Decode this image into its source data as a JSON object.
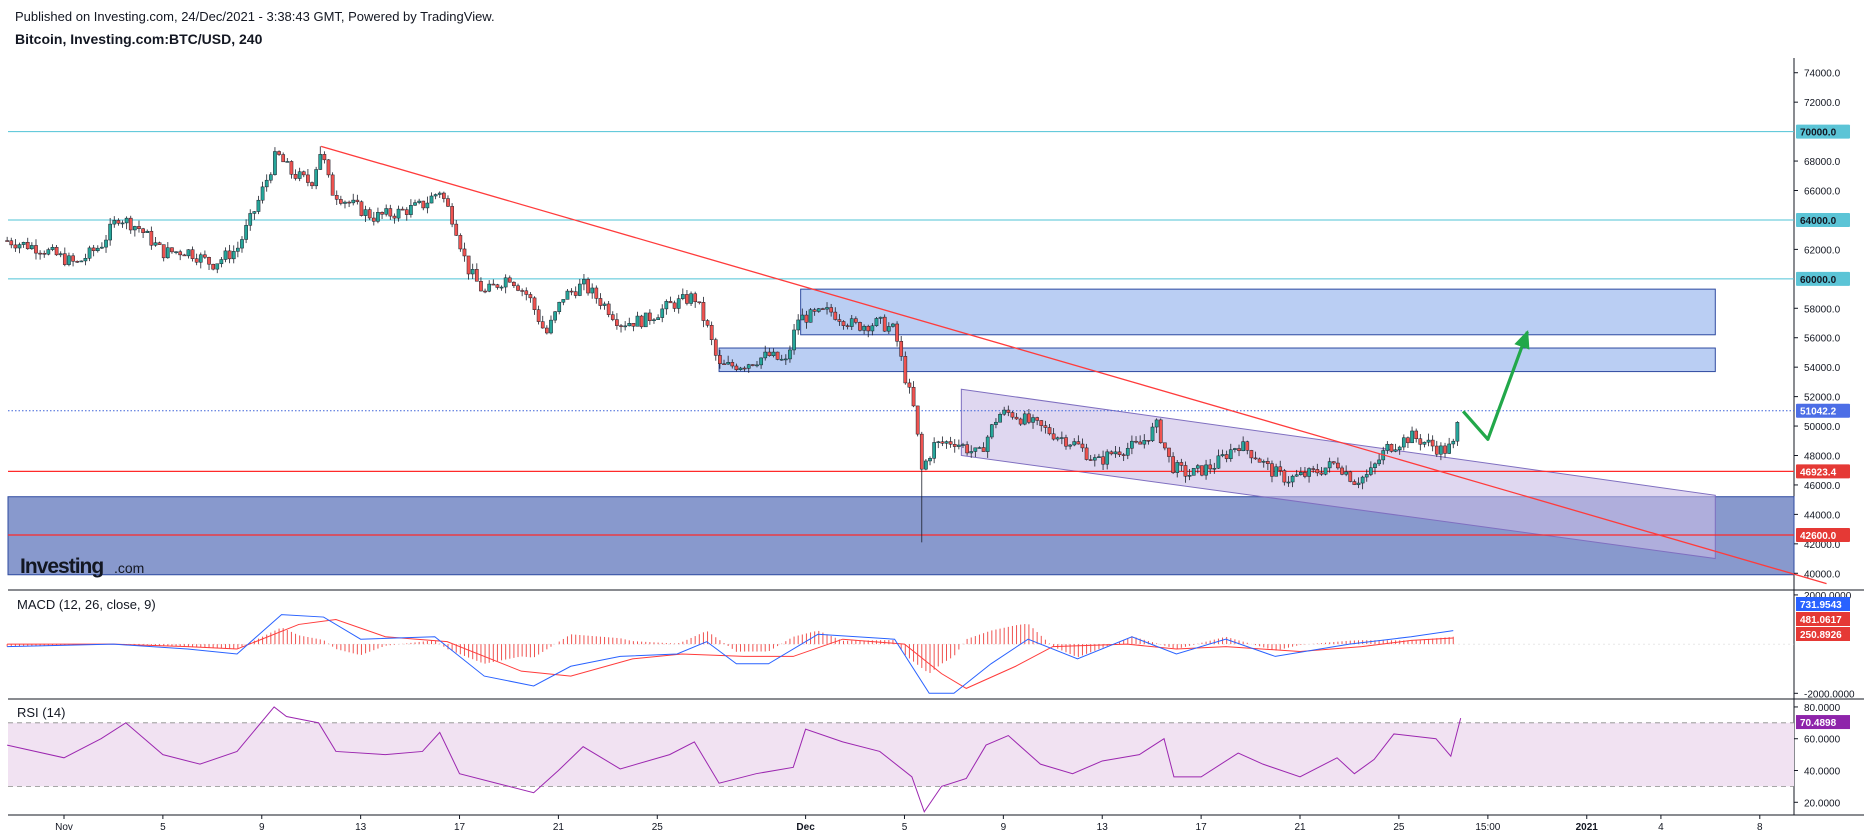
{
  "header": {
    "published": "Published on Investing.com, 24/Dec/2021 - 3:38:43 GMT, Powered by TradingView.",
    "title": "Bitcoin, Investing.com:BTC/USD, 240"
  },
  "logo": {
    "text": "Investing",
    "suffix": ".com"
  },
  "colors": {
    "up_candle": "#26a69a",
    "down_candle": "#ef5350",
    "resistance_line": "#4fc3d6",
    "support_line": "#ff2a2a",
    "trendline": "#ff3b3b",
    "zone_fill": "#aec6f1",
    "zone_stroke": "#2e4aa0",
    "support_zone_fill": "#7b8ec8",
    "channel_fill": "#c9bde6",
    "channel_stroke": "#7f6fc0",
    "forecast_arrow": "#22a84a",
    "current_price_line": "#3f63d8",
    "macd_line": "#2962ff",
    "signal_line": "#ff3b3b",
    "hist_color": "#ef5350",
    "rsi_line": "#9c27b0",
    "rsi_band": "#f1e2f2"
  },
  "chart_data": [
    {
      "type": "candlestick",
      "title": "Bitcoin, Investing.com:BTC/USD, 240",
      "y_ticks": [
        "74000.0",
        "72000.0",
        "68000.0",
        "66000.0",
        "62000.0",
        "58000.0",
        "56000.0",
        "54000.0",
        "52000.0",
        "50000.0",
        "48000.0",
        "46000.0",
        "44000.0",
        "42000.0",
        "40000.0"
      ],
      "ylim": [
        39000,
        75000
      ],
      "x_ticks": [
        {
          "label": "Nov",
          "day": 0
        },
        {
          "label": "5",
          "day": 4
        },
        {
          "label": "9",
          "day": 8
        },
        {
          "label": "13",
          "day": 12
        },
        {
          "label": "17",
          "day": 16
        },
        {
          "label": "21",
          "day": 20
        },
        {
          "label": "25",
          "day": 24
        },
        {
          "label": "Dec",
          "day": 30
        },
        {
          "label": "5",
          "day": 34
        },
        {
          "label": "9",
          "day": 38
        },
        {
          "label": "13",
          "day": 42
        },
        {
          "label": "17",
          "day": 46
        },
        {
          "label": "21",
          "day": 50
        },
        {
          "label": "25",
          "day": 54
        },
        {
          "label": "15:00",
          "day": 57.6
        },
        {
          "label": "2021",
          "day": 61.6
        },
        {
          "label": "4",
          "day": 64.6
        },
        {
          "label": "8",
          "day": 68.6
        }
      ],
      "price_path": [
        [
          -2.3,
          62600
        ],
        [
          -1,
          62100
        ],
        [
          0.5,
          61000
        ],
        [
          1.5,
          62300
        ],
        [
          2.2,
          64200
        ],
        [
          3,
          63500
        ],
        [
          4,
          61800
        ],
        [
          5,
          61900
        ],
        [
          6,
          61000
        ],
        [
          7,
          62000
        ],
        [
          7.8,
          65000
        ],
        [
          8.6,
          68500
        ],
        [
          9.2,
          67200
        ],
        [
          10,
          66500
        ],
        [
          10.4,
          68800
        ],
        [
          10.8,
          66000
        ],
        [
          11.5,
          65200
        ],
        [
          12.5,
          64200
        ],
        [
          13.5,
          64500
        ],
        [
          14.5,
          65000
        ],
        [
          15.2,
          66000
        ],
        [
          15.8,
          63800
        ],
        [
          16.3,
          60800
        ],
        [
          17,
          59000
        ],
        [
          18,
          60200
        ],
        [
          18.8,
          58800
        ],
        [
          19.5,
          56200
        ],
        [
          20.2,
          58800
        ],
        [
          21,
          59600
        ],
        [
          22,
          58000
        ],
        [
          22.5,
          57000
        ],
        [
          23.5,
          57200
        ],
        [
          24.5,
          58200
        ],
        [
          25.5,
          58800
        ],
        [
          26,
          56800
        ],
        [
          26.5,
          54000
        ],
        [
          27.5,
          54200
        ],
        [
          28.5,
          54800
        ],
        [
          29.2,
          54300
        ],
        [
          29.7,
          57300
        ],
        [
          30.3,
          57500
        ],
        [
          31,
          57800
        ],
        [
          32,
          56800
        ],
        [
          33,
          57000
        ],
        [
          33.6,
          56500
        ],
        [
          34,
          53500
        ],
        [
          34.4,
          51000
        ],
        [
          34.7,
          47000
        ],
        [
          35.2,
          48700
        ],
        [
          36,
          49000
        ],
        [
          37,
          48000
        ],
        [
          37.8,
          50800
        ],
        [
          38.3,
          50900
        ],
        [
          39,
          50300
        ],
        [
          40,
          49500
        ],
        [
          41,
          48700
        ],
        [
          41.8,
          47500
        ],
        [
          42.5,
          48300
        ],
        [
          43.5,
          48700
        ],
        [
          44.2,
          50000
        ],
        [
          44.8,
          47300
        ],
        [
          45.5,
          46700
        ],
        [
          46.5,
          47300
        ],
        [
          47.5,
          48800
        ],
        [
          48.2,
          48000
        ],
        [
          48.8,
          47000
        ],
        [
          49.5,
          46400
        ],
        [
          50.5,
          46800
        ],
        [
          51.5,
          47500
        ],
        [
          52.2,
          46300
        ],
        [
          52.8,
          46700
        ],
        [
          53.5,
          48500
        ],
        [
          54.5,
          49300
        ],
        [
          55.2,
          48800
        ],
        [
          55.8,
          48300
        ],
        [
          56.2,
          48700
        ],
        [
          56.5,
          51100
        ]
      ],
      "current_price": 51042.2,
      "current_price_label": "51042.2",
      "price_tags": [
        {
          "label": "70000.0",
          "value": 70000,
          "color": "#5bc4d6",
          "text_color": "#131722"
        },
        {
          "label": "64000.0",
          "value": 64000,
          "color": "#5bc4d6",
          "text_color": "#131722"
        },
        {
          "label": "60000.0",
          "value": 60000,
          "color": "#5bc4d6",
          "text_color": "#131722"
        },
        {
          "label": "51042.2",
          "value": 51042.2,
          "color": "#4c6ee6",
          "text_color": "#ffffff"
        },
        {
          "label": "46923.4",
          "value": 46923.4,
          "color": "#e53935",
          "text_color": "#ffffff"
        },
        {
          "label": "42600.0",
          "value": 42600,
          "color": "#e53935",
          "text_color": "#ffffff"
        }
      ],
      "horizontal_lines": [
        {
          "value": 70000,
          "style": "resistance"
        },
        {
          "value": 64000,
          "style": "resistance"
        },
        {
          "value": 60000,
          "style": "resistance"
        },
        {
          "value": 46923.4,
          "style": "support"
        },
        {
          "value": 42600,
          "style": "support"
        }
      ],
      "zones": [
        {
          "from_day": 29.8,
          "to_day": 66.8,
          "low": 56200,
          "high": 59300,
          "style": "resistance_zone"
        },
        {
          "from_day": 26.5,
          "to_day": 66.8,
          "low": 53700,
          "high": 55300,
          "style": "resistance_zone"
        },
        {
          "from_day": -2.3,
          "to_day": 71.3,
          "low": 39900,
          "high": 45200,
          "style": "support_zone"
        }
      ],
      "trendline": {
        "from": [
          10.4,
          69000
        ],
        "to": [
          71.3,
          39300
        ]
      },
      "channel": {
        "upper": [
          [
            36.3,
            52500
          ],
          [
            66.8,
            45300
          ]
        ],
        "lower": [
          [
            36.3,
            48000
          ],
          [
            66.8,
            41000
          ]
        ]
      },
      "forecast_arrow": [
        [
          56.6,
          51000
        ],
        [
          57.6,
          49100
        ],
        [
          59.2,
          56400
        ]
      ]
    },
    {
      "type": "line",
      "title": "MACD (12, 26, close, 9)",
      "y_ticks": [
        "2000.0000",
        "-2000.0000"
      ],
      "ylim": [
        -2150,
        2200
      ],
      "series": [
        {
          "name": "MACD",
          "values": [
            [
              -2.3,
              -100
            ],
            [
              2,
              0
            ],
            [
              5,
              -200
            ],
            [
              7,
              -400
            ],
            [
              8.8,
              1200
            ],
            [
              10.5,
              1100
            ],
            [
              12,
              200
            ],
            [
              15,
              300
            ],
            [
              17,
              -1300
            ],
            [
              19,
              -1700
            ],
            [
              20.5,
              -900
            ],
            [
              22.5,
              -500
            ],
            [
              24.8,
              -400
            ],
            [
              26,
              100
            ],
            [
              27.2,
              -800
            ],
            [
              28.5,
              -800
            ],
            [
              30.5,
              400
            ],
            [
              33.6,
              200
            ],
            [
              35,
              -2000
            ],
            [
              36,
              -2000
            ],
            [
              37.5,
              -800
            ],
            [
              39,
              200
            ],
            [
              41,
              -600
            ],
            [
              43.2,
              300
            ],
            [
              45,
              -400
            ],
            [
              47,
              200
            ],
            [
              49,
              -500
            ],
            [
              52,
              0
            ],
            [
              54.5,
              300
            ],
            [
              56.2,
              550
            ]
          ]
        },
        {
          "name": "Signal",
          "values": [
            [
              -2.3,
              0
            ],
            [
              2,
              0
            ],
            [
              5,
              -100
            ],
            [
              7,
              -200
            ],
            [
              9.5,
              800
            ],
            [
              11,
              1000
            ],
            [
              13,
              300
            ],
            [
              15.5,
              100
            ],
            [
              18.5,
              -1100
            ],
            [
              20.5,
              -1300
            ],
            [
              23,
              -600
            ],
            [
              25,
              -400
            ],
            [
              27.5,
              -500
            ],
            [
              29.5,
              -500
            ],
            [
              31.5,
              200
            ],
            [
              34,
              0
            ],
            [
              35.5,
              -1200
            ],
            [
              36.5,
              -1800
            ],
            [
              38.5,
              -900
            ],
            [
              40,
              -100
            ],
            [
              43,
              0
            ],
            [
              45,
              -200
            ],
            [
              47,
              -100
            ],
            [
              50,
              -300
            ],
            [
              52.5,
              -100
            ],
            [
              54.5,
              150
            ],
            [
              56.2,
              250
            ]
          ]
        },
        {
          "name": "Histogram",
          "values": []
        }
      ],
      "readouts": [
        {
          "label": "731.9543",
          "color": "#2962ff"
        },
        {
          "label": "481.0617",
          "color": "#e53935"
        },
        {
          "label": "250.8926",
          "color": "#e53935"
        }
      ]
    },
    {
      "type": "line",
      "title": "RSI (14)",
      "y_ticks": [
        "80.0000",
        "60.0000",
        "40.0000",
        "20.0000"
      ],
      "ylim": [
        12,
        85
      ],
      "band": [
        30,
        70
      ],
      "series": [
        {
          "name": "RSI",
          "values": [
            [
              -2.3,
              56
            ],
            [
              0,
              48
            ],
            [
              1.5,
              60
            ],
            [
              2.5,
              70
            ],
            [
              4,
              50
            ],
            [
              5.5,
              44
            ],
            [
              7,
              52
            ],
            [
              8.5,
              80
            ],
            [
              9,
              74
            ],
            [
              10.3,
              70
            ],
            [
              11,
              52
            ],
            [
              13,
              50
            ],
            [
              14.5,
              52
            ],
            [
              15.2,
              64
            ],
            [
              16,
              38
            ],
            [
              17.5,
              32
            ],
            [
              19,
              26
            ],
            [
              20,
              40
            ],
            [
              21,
              55
            ],
            [
              22.5,
              41
            ],
            [
              24.5,
              50
            ],
            [
              25.5,
              58
            ],
            [
              26.5,
              32
            ],
            [
              28,
              38
            ],
            [
              29.5,
              42
            ],
            [
              30,
              66
            ],
            [
              31.5,
              58
            ],
            [
              33,
              52
            ],
            [
              34.3,
              36
            ],
            [
              34.8,
              14
            ],
            [
              35.5,
              30
            ],
            [
              36.5,
              35
            ],
            [
              37.3,
              56
            ],
            [
              38.2,
              62
            ],
            [
              39.5,
              44
            ],
            [
              40.8,
              38
            ],
            [
              42,
              46
            ],
            [
              43.5,
              50
            ],
            [
              44.5,
              60
            ],
            [
              44.9,
              36
            ],
            [
              46,
              36
            ],
            [
              47.5,
              51
            ],
            [
              48.5,
              44
            ],
            [
              50,
              36
            ],
            [
              51.5,
              48
            ],
            [
              52.2,
              38
            ],
            [
              53,
              47
            ],
            [
              53.8,
              63
            ],
            [
              55.5,
              60
            ],
            [
              56.1,
              49
            ],
            [
              56.5,
              73
            ]
          ]
        }
      ],
      "readout": {
        "label": "70.4898",
        "color": "#8e24aa"
      }
    }
  ]
}
